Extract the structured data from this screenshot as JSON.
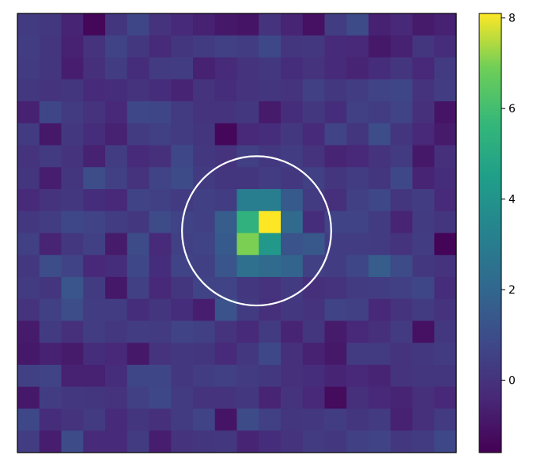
{
  "chart_data": {
    "type": "heatmap",
    "title": "",
    "xlabel": "",
    "ylabel": "",
    "colormap": "viridis",
    "grid": false,
    "axis_ticks": false,
    "rows": 20,
    "cols": 20,
    "vmin": -1.6,
    "vmax": 8.1,
    "colorbar": {
      "ticks": [
        8,
        6,
        4,
        2,
        0
      ],
      "tick_labels": [
        "8",
        "6",
        "4",
        "2",
        "0"
      ]
    },
    "aperture": {
      "shape": "circle",
      "center_col": 10.9,
      "center_row": 9.9,
      "radius_cells": 3.4,
      "color": "#ffffff"
    },
    "values": [
      [
        0.3,
        0.2,
        -0.5,
        -1.4,
        0.1,
        0.7,
        0.0,
        -0.3,
        -0.6,
        -0.9,
        -1.0,
        0.0,
        -0.5,
        -1.1,
        0.4,
        0.9,
        -0.6,
        -0.4,
        -0.8,
        -0.6
      ],
      [
        0.4,
        0.1,
        -0.6,
        0.0,
        0.6,
        0.2,
        -0.3,
        0.1,
        0.3,
        0.5,
        0.4,
        0.8,
        0.1,
        0.2,
        -0.3,
        -0.4,
        -0.9,
        -0.6,
        0.1,
        -0.2
      ],
      [
        0.3,
        0.1,
        -0.7,
        -0.1,
        0.4,
        -0.2,
        0.3,
        0.4,
        -0.6,
        -0.3,
        0.0,
        0.2,
        -0.2,
        0.0,
        -0.3,
        -0.5,
        -0.2,
        0.1,
        -0.4,
        0.3
      ],
      [
        0.2,
        0.0,
        0.1,
        -0.3,
        -0.2,
        0.0,
        -0.2,
        -0.5,
        0.0,
        -0.2,
        0.0,
        0.1,
        0.0,
        0.5,
        0.2,
        0.4,
        0.6,
        0.7,
        0.0,
        0.4
      ],
      [
        -0.6,
        0.7,
        0.3,
        0.0,
        -0.4,
        0.8,
        0.7,
        0.3,
        0.0,
        0.0,
        0.2,
        -0.8,
        -0.2,
        0.2,
        -0.2,
        0.5,
        0.4,
        0.6,
        -0.1,
        -1.0
      ],
      [
        0.3,
        -0.9,
        0.2,
        -0.2,
        -0.6,
        0.3,
        0.5,
        0.3,
        0.1,
        -1.4,
        -0.4,
        -0.2,
        0.2,
        -0.3,
        0.6,
        0.1,
        1.0,
        0.1,
        -0.4,
        -0.8
      ],
      [
        0.0,
        0.3,
        0.0,
        -0.6,
        0.4,
        -0.3,
        -0.1,
        0.8,
        0.2,
        0.0,
        0.5,
        0.2,
        0.4,
        0.0,
        -0.5,
        -0.4,
        0.0,
        0.3,
        -0.9,
        -0.1
      ],
      [
        0.1,
        -0.7,
        0.1,
        1.0,
        0.5,
        0.0,
        0.6,
        0.9,
        0.3,
        0.1,
        0.1,
        0.4,
        0.2,
        0.5,
        0.1,
        0.4,
        0.1,
        0.8,
        -0.5,
        -0.2
      ],
      [
        -0.3,
        0.0,
        0.2,
        -0.2,
        -0.4,
        0.6,
        0.5,
        0.3,
        0.5,
        0.4,
        3.0,
        3.0,
        1.5,
        0.3,
        -0.1,
        0.5,
        0.8,
        0.1,
        0.4,
        -0.3
      ],
      [
        0.2,
        0.4,
        0.8,
        0.6,
        0.4,
        0.2,
        0.9,
        0.6,
        0.5,
        1.6,
        5.4,
        8.1,
        2.2,
        -0.2,
        0.6,
        0.6,
        0.3,
        -0.5,
        0.3,
        0.1
      ],
      [
        0.5,
        -0.5,
        0.2,
        0.5,
        -0.8,
        0.9,
        -0.3,
        0.5,
        0.6,
        1.5,
        7.0,
        4.2,
        1.2,
        1.4,
        0.4,
        0.4,
        0.3,
        0.0,
        0.4,
        -1.5
      ],
      [
        0.2,
        1.0,
        0.6,
        -0.4,
        -0.2,
        0.8,
        -0.2,
        0.6,
        0.5,
        1.3,
        2.4,
        2.2,
        1.9,
        0.5,
        0.4,
        0.7,
        1.6,
        0.9,
        0.2,
        0.0
      ],
      [
        0.3,
        0.1,
        1.3,
        0.3,
        -0.9,
        0.5,
        -0.4,
        0.1,
        0.6,
        0.6,
        0.2,
        0.0,
        0.3,
        -0.1,
        0.0,
        0.3,
        0.4,
        0.5,
        0.7,
        -0.2
      ],
      [
        0.0,
        0.5,
        1.0,
        0.4,
        0.4,
        -0.2,
        0.1,
        -0.2,
        -0.7,
        1.2,
        0.3,
        -0.1,
        0.2,
        0.0,
        0.6,
        0.5,
        -0.4,
        0.0,
        0.3,
        0.0
      ],
      [
        -0.8,
        0.3,
        -0.1,
        0.4,
        0.2,
        0.4,
        0.3,
        0.6,
        0.5,
        0.0,
        -0.3,
        0.3,
        -0.5,
        0.1,
        -0.8,
        -0.4,
        -0.1,
        0.3,
        -1.1,
        0.2
      ],
      [
        -0.9,
        -0.6,
        -0.8,
        -0.2,
        -0.4,
        -0.9,
        0.0,
        0.2,
        0.1,
        -0.3,
        0.2,
        0.8,
        -0.1,
        -0.6,
        -0.9,
        0.3,
        0.3,
        0.0,
        0.2,
        0.3
      ],
      [
        0.5,
        0.6,
        -0.6,
        -0.6,
        -0.2,
        0.7,
        0.7,
        0.2,
        0.4,
        0.5,
        0.3,
        0.2,
        -0.1,
        -0.2,
        -0.5,
        -0.4,
        -0.5,
        0.0,
        0.1,
        0.1
      ],
      [
        -0.9,
        0.4,
        0.2,
        0.1,
        0.0,
        0.5,
        0.8,
        0.3,
        0.0,
        0.0,
        0.2,
        -0.5,
        0.0,
        -0.4,
        -1.3,
        -0.1,
        -0.4,
        -0.5,
        -0.1,
        -0.4
      ],
      [
        0.8,
        -0.2,
        0.0,
        0.3,
        -0.3,
        0.1,
        -0.1,
        0.3,
        0.6,
        -1.0,
        0.9,
        0.5,
        0.1,
        0.2,
        0.4,
        0.1,
        0.3,
        -0.6,
        -0.1,
        0.3
      ],
      [
        0.4,
        -0.7,
        0.9,
        -0.3,
        -0.3,
        0.3,
        -0.7,
        0.0,
        0.1,
        0.2,
        -0.5,
        -0.2,
        0.0,
        0.3,
        0.2,
        0.5,
        0.6,
        0.2,
        0.3,
        0.8
      ]
    ]
  }
}
